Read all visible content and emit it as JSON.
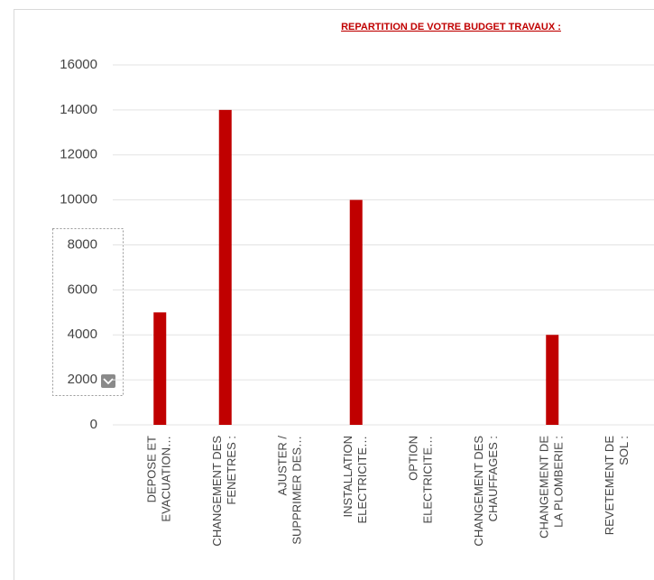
{
  "chart_data": {
    "type": "bar",
    "title": "REPARTITION DE VOTRE BUDGET TRAVAUX :",
    "categories": [
      [
        "DEPOSE ET",
        "EVACUATION…"
      ],
      [
        "CHANGEMENT DES",
        "FENETRES :"
      ],
      [
        "AJUSTER /",
        "SUPPRIMER DES…"
      ],
      [
        "INSTALLATION",
        "ELECTRICITE…"
      ],
      [
        "OPTION",
        "ELECTRICITE…"
      ],
      [
        "CHANGEMENT DES",
        "CHAUFFAGES :"
      ],
      [
        "CHANGEMENT DE",
        "LA PLOMBERIE :"
      ],
      [
        "REVETEMENT DE",
        "SOL :"
      ]
    ],
    "values": [
      5000,
      14000,
      0,
      10000,
      0,
      0,
      4000,
      0
    ],
    "color": "#c00000",
    "ylim": [
      0,
      16000
    ],
    "yticks": [
      0,
      2000,
      4000,
      6000,
      8000,
      10000,
      12000,
      14000,
      16000
    ],
    "grid": true
  }
}
